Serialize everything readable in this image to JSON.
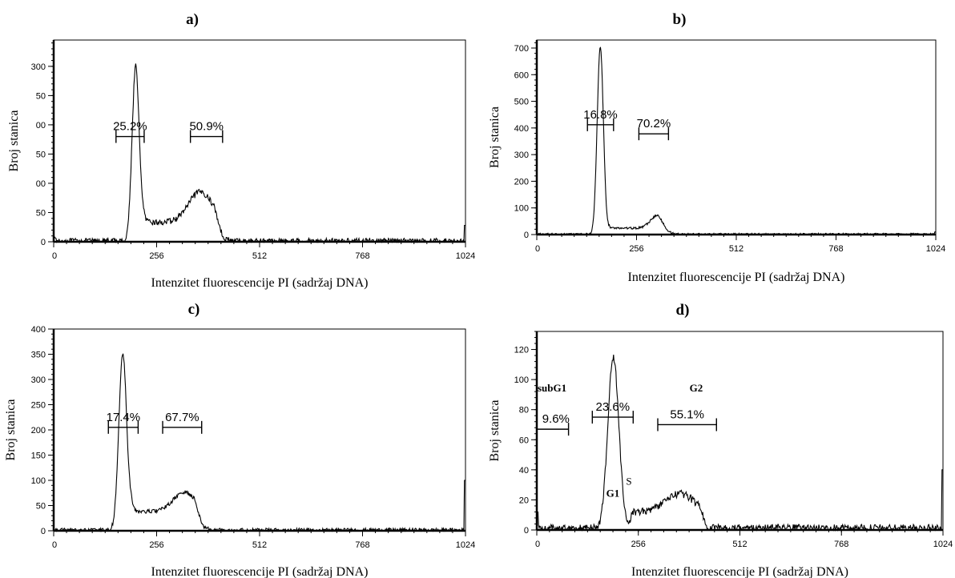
{
  "chart_data": [
    {
      "panel": "a)",
      "type": "line",
      "xlabel": "Intenzitet fluorescencije PI (sadržaj DNA)",
      "ylabel": "Broj stanica",
      "xlim": [
        0,
        1024
      ],
      "ylim": [
        0,
        345
      ],
      "x_ticks": [
        "0",
        "256",
        "512",
        "768",
        "1024"
      ],
      "y_ticks": [
        {
          "v": 0,
          "t": "0"
        },
        {
          "v": 50,
          "t": "50"
        },
        {
          "v": 100,
          "t": "00"
        },
        {
          "v": 150,
          "t": "50"
        },
        {
          "v": 200,
          "t": "00"
        },
        {
          "v": 250,
          "t": "50"
        },
        {
          "v": 300,
          "t": "300"
        }
      ],
      "peaks": [
        {
          "mu": 204,
          "sigma": 9,
          "amp": 300
        },
        {
          "mu": 365,
          "sigma": 30,
          "amp": 52
        }
      ],
      "plateau": {
        "from": 215,
        "to": 420,
        "level": 33
      },
      "edges": [
        {
          "x": 1,
          "v": 8
        },
        {
          "x": 1023,
          "v": 28
        }
      ],
      "noise": 5,
      "gates": [
        {
          "label": "25.2%",
          "x1": 155,
          "x2": 225,
          "y": 180
        },
        {
          "label": "50.9%",
          "x1": 340,
          "x2": 420,
          "y": 180
        }
      ]
    },
    {
      "panel": "b)",
      "type": "line",
      "xlabel": "Intenzitet fluorescencije PI (sadržaj DNA)",
      "ylabel": "Broj stanica",
      "xlim": [
        0,
        1024
      ],
      "ylim": [
        0,
        730
      ],
      "x_ticks": [
        "0",
        "256",
        "512",
        "768",
        "1024"
      ],
      "y_ticks": [
        {
          "v": 0,
          "t": "0"
        },
        {
          "v": 100,
          "t": "100"
        },
        {
          "v": 200,
          "t": "200"
        },
        {
          "v": 300,
          "t": "300"
        },
        {
          "v": 400,
          "t": "400"
        },
        {
          "v": 500,
          "t": "500"
        },
        {
          "v": 600,
          "t": "600"
        },
        {
          "v": 700,
          "t": "700"
        }
      ],
      "peaks": [
        {
          "mu": 163,
          "sigma": 8,
          "amp": 705
        },
        {
          "mu": 310,
          "sigma": 18,
          "amp": 48
        }
      ],
      "plateau": {
        "from": 178,
        "to": 330,
        "level": 24
      },
      "edges": [
        {
          "x": 1023,
          "v": 10
        }
      ],
      "noise": 4,
      "gates": [
        {
          "label": "16.8%",
          "x1": 130,
          "x2": 197,
          "y": 412
        },
        {
          "label": "70.2%",
          "x1": 262,
          "x2": 338,
          "y": 378
        }
      ]
    },
    {
      "panel": "c)",
      "type": "line",
      "xlabel": "Intenzitet fluorescencije PI (sadržaj DNA)",
      "ylabel": "Broj stanica",
      "xlim": [
        0,
        1024
      ],
      "ylim": [
        0,
        400
      ],
      "x_ticks": [
        "0",
        "256",
        "512",
        "768",
        "1024"
      ],
      "y_ticks": [
        {
          "v": 0,
          "t": "0"
        },
        {
          "v": 50,
          "t": "50"
        },
        {
          "v": 100,
          "t": "100"
        },
        {
          "v": 150,
          "t": "150"
        },
        {
          "v": 200,
          "t": "200"
        },
        {
          "v": 250,
          "t": "250"
        },
        {
          "v": 300,
          "t": "300"
        },
        {
          "v": 350,
          "t": "350"
        },
        {
          "v": 400,
          "t": "400"
        }
      ],
      "peaks": [
        {
          "mu": 172,
          "sigma": 10,
          "amp": 350
        },
        {
          "mu": 325,
          "sigma": 28,
          "amp": 38
        }
      ],
      "plateau": {
        "from": 185,
        "to": 370,
        "level": 38
      },
      "edges": [
        {
          "x": 1023,
          "v": 100
        }
      ],
      "noise": 4,
      "gates": [
        {
          "label": "17.4%",
          "x1": 136,
          "x2": 210,
          "y": 205
        },
        {
          "label": "67.7%",
          "x1": 271,
          "x2": 368,
          "y": 205
        }
      ]
    },
    {
      "panel": "d)",
      "type": "line",
      "xlabel": "Intenzitet fluorescencije PI (sadržaj DNA)",
      "ylabel": "Broj stanica",
      "xlim": [
        0,
        1024
      ],
      "ylim": [
        0,
        132
      ],
      "x_ticks": [
        "0",
        "256",
        "512",
        "768",
        "1024"
      ],
      "y_ticks": [
        {
          "v": 0,
          "t": "0"
        },
        {
          "v": 20,
          "t": "20"
        },
        {
          "v": 40,
          "t": "40"
        },
        {
          "v": 60,
          "t": "60"
        },
        {
          "v": 80,
          "t": "80"
        },
        {
          "v": 100,
          "t": "100"
        },
        {
          "v": 120,
          "t": "120"
        }
      ],
      "peaks": [
        {
          "mu": 193,
          "sigma": 14,
          "amp": 115
        },
        {
          "mu": 360,
          "sigma": 36,
          "amp": 12
        }
      ],
      "plateau": {
        "from": 232,
        "to": 430,
        "level": 12
      },
      "edges": [
        {
          "x": 1,
          "v": 12
        },
        {
          "x": 1023,
          "v": 40
        }
      ],
      "noise": 2.5,
      "gates": [
        {
          "label": "9.6%",
          "x1": 0,
          "x2": 80,
          "y": 67
        },
        {
          "label": "23.6%",
          "x1": 140,
          "x2": 243,
          "y": 75
        },
        {
          "label": "55.1%",
          "x1": 305,
          "x2": 453,
          "y": 70
        }
      ],
      "annotations": [
        {
          "label": "subG1",
          "x": 2,
          "y": 92,
          "bold": true
        },
        {
          "label": "G2",
          "x": 385,
          "y": 92,
          "bold": true
        },
        {
          "label": "G1",
          "x": 175,
          "y": 22,
          "bold": true
        },
        {
          "label": "S",
          "x": 225,
          "y": 30,
          "bold": false
        }
      ]
    }
  ]
}
